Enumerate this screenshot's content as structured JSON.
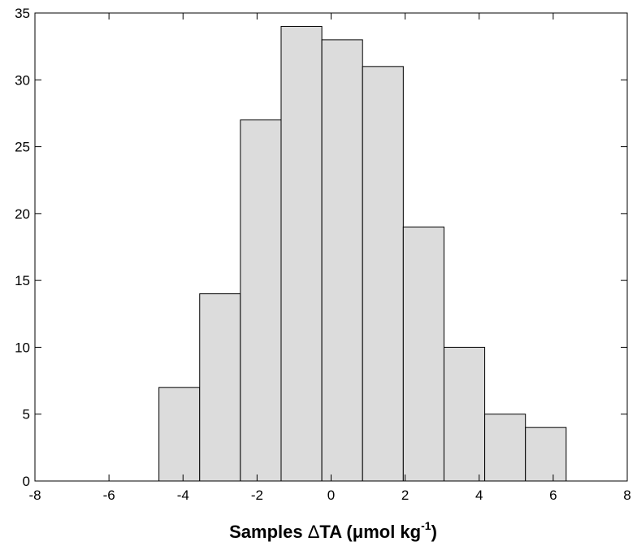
{
  "chart_data": {
    "type": "bar",
    "subtype": "histogram",
    "title": "",
    "xlabel": {
      "prefix": "Samples ",
      "delta": "Δ",
      "mid": "TA (",
      "mu": "μ",
      "units": "mol kg",
      "sup": "-1",
      "close": ")"
    },
    "ylabel": "",
    "xlim": [
      -8,
      8
    ],
    "ylim": [
      0,
      35
    ],
    "xticks": [
      -8,
      -6,
      -4,
      -2,
      0,
      2,
      4,
      6,
      8
    ],
    "yticks": [
      0,
      5,
      10,
      15,
      20,
      25,
      30,
      35
    ],
    "grid": false,
    "bar_fill": "#dcdcdc",
    "bar_edge": "#000000",
    "bins": [
      {
        "x0": -4.65,
        "x1": -3.55,
        "count": 7
      },
      {
        "x0": -3.55,
        "x1": -2.45,
        "count": 14
      },
      {
        "x0": -2.45,
        "x1": -1.35,
        "count": 27
      },
      {
        "x0": -1.35,
        "x1": -0.25,
        "count": 34
      },
      {
        "x0": -0.25,
        "x1": 0.85,
        "count": 33
      },
      {
        "x0": 0.85,
        "x1": 1.95,
        "count": 31
      },
      {
        "x0": 1.95,
        "x1": 3.05,
        "count": 19
      },
      {
        "x0": 3.05,
        "x1": 4.15,
        "count": 10
      },
      {
        "x0": 4.15,
        "x1": 5.25,
        "count": 5
      },
      {
        "x0": 5.25,
        "x1": 6.35,
        "count": 4
      }
    ]
  }
}
